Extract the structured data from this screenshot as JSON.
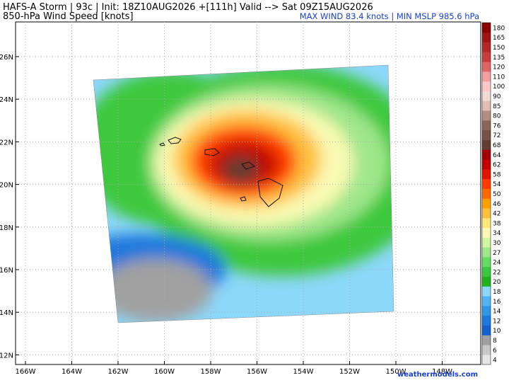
{
  "header": {
    "title": "HAFS-A Storm | 93c | Init: 18Z10AUG2026 +[111h] Valid --> Sat 09Z15AUG2026",
    "subtitle": "850-hPa Wind Speed [knots]",
    "stats": "MAX WIND 83.4 knots | MIN MSLP 985.6 hPa"
  },
  "map": {
    "lat_labels": [
      "26N",
      "24N",
      "22N",
      "20N",
      "18N",
      "16N",
      "14N",
      "12N"
    ],
    "lon_labels": [
      "166W",
      "164W",
      "162W",
      "160W",
      "158W",
      "156W",
      "154W",
      "152W",
      "150W",
      "148W"
    ]
  },
  "colorbar": [
    {
      "label": 4,
      "color": "#e6e6e6"
    },
    {
      "label": 6,
      "color": "#c8c8c8"
    },
    {
      "label": 8,
      "color": "#a0a0a0"
    },
    {
      "label": 10,
      "color": "#1560d0"
    },
    {
      "label": 12,
      "color": "#1f78dc"
    },
    {
      "label": 14,
      "color": "#3296e6"
    },
    {
      "label": 16,
      "color": "#50b4f0"
    },
    {
      "label": 18,
      "color": "#8cd8fa"
    },
    {
      "label": 20,
      "color": "#1eb41e"
    },
    {
      "label": 22,
      "color": "#3cc83c"
    },
    {
      "label": 24,
      "color": "#64dc64"
    },
    {
      "label": 27,
      "color": "#a0e68c"
    },
    {
      "label": 30,
      "color": "#d2f5a0"
    },
    {
      "label": 34,
      "color": "#fafab4"
    },
    {
      "label": 38,
      "color": "#ffe878"
    },
    {
      "label": 42,
      "color": "#ffc03c"
    },
    {
      "label": 46,
      "color": "#ffa000"
    },
    {
      "label": 50,
      "color": "#ff6a00"
    },
    {
      "label": 54,
      "color": "#ff3c00"
    },
    {
      "label": 58,
      "color": "#e11400"
    },
    {
      "label": 62,
      "color": "#c00000"
    },
    {
      "label": 64,
      "color": "#a50000"
    },
    {
      "label": 68,
      "color": "#643c32"
    },
    {
      "label": 72,
      "color": "#785046"
    },
    {
      "label": 76,
      "color": "#8c645a"
    },
    {
      "label": 80,
      "color": "#b48c82"
    },
    {
      "label": 85,
      "color": "#e1beb4"
    },
    {
      "label": 90,
      "color": "#f0dcd2"
    },
    {
      "label": 100,
      "color": "#ffc8c8"
    },
    {
      "label": 110,
      "color": "#f5a0a0"
    },
    {
      "label": 120,
      "color": "#e16464"
    },
    {
      "label": 135,
      "color": "#c83c3c"
    },
    {
      "label": 150,
      "color": "#b42828"
    },
    {
      "label": 165,
      "color": "#a01414"
    },
    {
      "label": 180,
      "color": "#8c0000"
    }
  ],
  "watermark": "weathermodels.com"
}
